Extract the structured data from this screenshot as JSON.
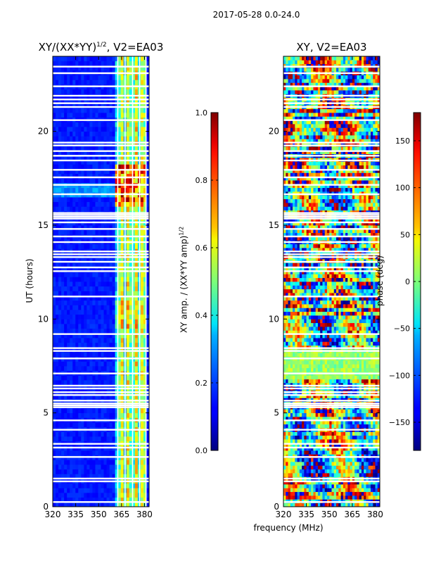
{
  "figure_title": "2017-05-28 0.0-24.0",
  "chart_data": [
    {
      "type": "heatmap",
      "title": "XY/(XX*YY)^1/2, V2=EA03",
      "title_main": "XY/(XX*YY)",
      "title_sup": "1/2",
      "title_tail": ", V2=EA03",
      "xlabel": "",
      "ylabel": "UT (hours)",
      "xlim": [
        320,
        383
      ],
      "ylim": [
        0,
        24
      ],
      "xticks": [
        320,
        335,
        350,
        365,
        380
      ],
      "yticks": [
        0,
        5,
        10,
        15,
        20
      ],
      "colormap": "jet",
      "colorbar": {
        "label": "XY amp. / (XX*YY amp)^1/2",
        "label_main": "XY amp. / (XX*YY amp)",
        "label_sup": "1/2",
        "range": [
          0.0,
          1.0
        ],
        "ticks": [
          "0.0",
          "0.2",
          "0.4",
          "0.6",
          "0.8",
          "1.0"
        ]
      },
      "flagged_hours": [
        0.25,
        1.35,
        1.5,
        2.65,
        3.15,
        3.35,
        4.1,
        4.6,
        5.3,
        5.4,
        5.5,
        5.65,
        5.95,
        6.1,
        6.3,
        6.45,
        7.1,
        7.9,
        8.3,
        8.45,
        9.2,
        11.2,
        12.55,
        12.75,
        13.05,
        13.3,
        13.45,
        13.6,
        14.1,
        14.4,
        14.8,
        15.15,
        15.35,
        15.45,
        15.55,
        15.65,
        16.65,
        17.15,
        17.55,
        17.95,
        18.45,
        18.7,
        18.95,
        19.25,
        19.4,
        20.6,
        21.3,
        21.5,
        21.7,
        21.9,
        22.4,
        23.1,
        23.45
      ]
    },
    {
      "type": "heatmap",
      "title": "XY, V2=EA03",
      "xlabel": "frequency (MHz)",
      "ylabel": "",
      "xlim": [
        320,
        383
      ],
      "ylim": [
        0,
        24
      ],
      "xticks": [
        320,
        335,
        350,
        365,
        380
      ],
      "yticks": [
        0,
        5,
        10,
        15,
        20
      ],
      "colormap": "jet",
      "colorbar": {
        "label": "phase (deg)",
        "range": [
          -180,
          180
        ],
        "ticks": [
          "−150",
          "−100",
          "−50",
          "0",
          "50",
          "100",
          "150"
        ]
      },
      "flagged_hours": [
        0.25,
        1.35,
        1.5,
        2.65,
        3.15,
        3.35,
        4.1,
        4.6,
        5.3,
        5.4,
        5.5,
        5.65,
        5.95,
        6.1,
        6.3,
        6.45,
        7.1,
        7.9,
        8.3,
        8.45,
        9.2,
        11.2,
        12.55,
        12.75,
        13.05,
        13.3,
        13.45,
        13.6,
        14.1,
        14.4,
        14.8,
        15.15,
        15.35,
        15.45,
        15.55,
        15.65,
        16.65,
        17.15,
        17.55,
        17.95,
        18.45,
        18.7,
        18.95,
        19.25,
        19.4,
        20.6,
        21.3,
        21.5,
        21.7,
        21.9,
        22.4,
        23.1,
        23.45
      ]
    }
  ]
}
